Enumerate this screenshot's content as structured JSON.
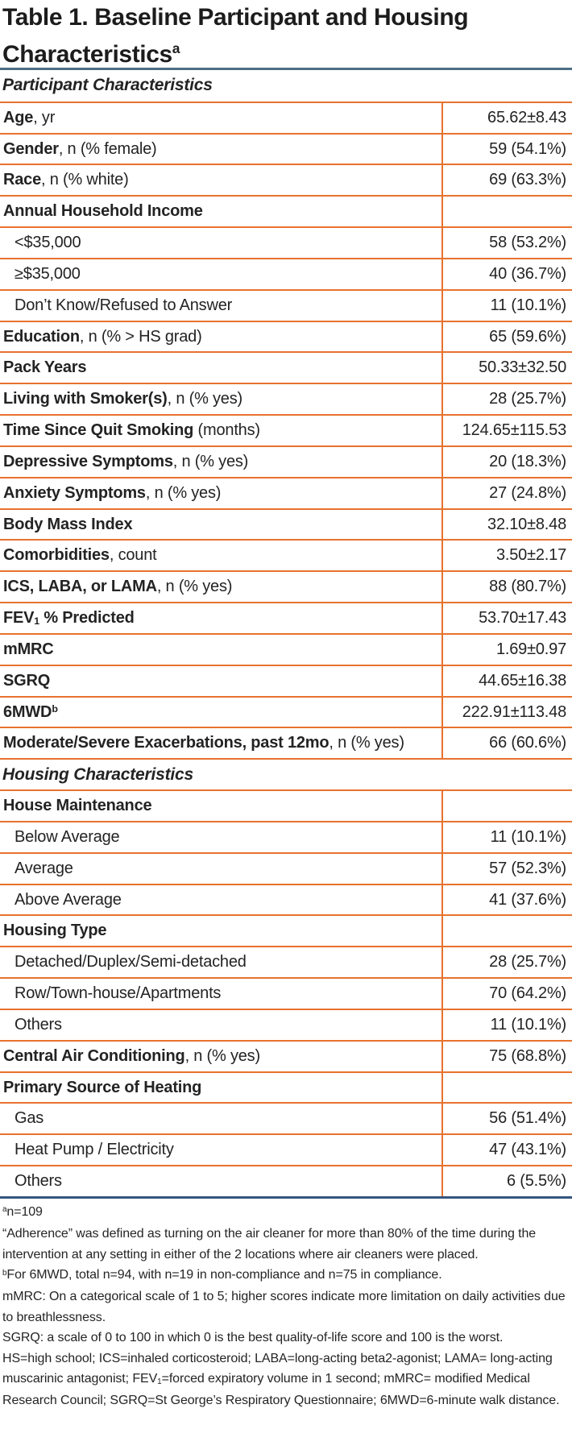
{
  "title": {
    "line1": "Table 1. Baseline Participant and Housing",
    "line2": "Characteristics",
    "superscript": "a"
  },
  "colors": {
    "accent_orange": "#E8722E",
    "rule_top": "#4D6F85",
    "rule_bottom": "#34567E"
  },
  "table": {
    "rows": [
      {
        "type": "section",
        "segments": [
          {
            "t": "Participant Characteristics",
            "b": true
          }
        ]
      },
      {
        "type": "row",
        "segments": [
          {
            "t": "Age",
            "b": true
          },
          {
            "t": ", yr"
          }
        ],
        "value": "65.62±8.43"
      },
      {
        "type": "row",
        "segments": [
          {
            "t": "Gender",
            "b": true
          },
          {
            "t": ", n (% female)"
          }
        ],
        "value": "59 (54.1%)"
      },
      {
        "type": "row",
        "segments": [
          {
            "t": "Race",
            "b": true
          },
          {
            "t": ", n (% white)"
          }
        ],
        "value": "69 (63.3%)"
      },
      {
        "type": "row",
        "segments": [
          {
            "t": "Annual Household Income",
            "b": true
          }
        ],
        "value": ""
      },
      {
        "type": "row",
        "indent": true,
        "segments": [
          {
            "t": "<$35,000"
          }
        ],
        "value": "58 (53.2%)"
      },
      {
        "type": "row",
        "indent": true,
        "segments": [
          {
            "t": "≥$35,000"
          }
        ],
        "value": "40 (36.7%)"
      },
      {
        "type": "row",
        "indent": true,
        "segments": [
          {
            "t": "Don’t Know/Refused to Answer"
          }
        ],
        "value": "11 (10.1%)"
      },
      {
        "type": "row",
        "segments": [
          {
            "t": "Education",
            "b": true
          },
          {
            "t": ", n (% > HS grad)"
          }
        ],
        "value": "65 (59.6%)"
      },
      {
        "type": "row",
        "segments": [
          {
            "t": "Pack Years",
            "b": true
          }
        ],
        "value": "50.33±32.50"
      },
      {
        "type": "row",
        "segments": [
          {
            "t": "Living with Smoker(s)",
            "b": true
          },
          {
            "t": ", n (% yes)"
          }
        ],
        "value": "28 (25.7%)"
      },
      {
        "type": "row",
        "segments": [
          {
            "t": "Time Since Quit Smoking",
            "b": true
          },
          {
            "t": " (months)"
          }
        ],
        "value": "124.65±115.53"
      },
      {
        "type": "row",
        "segments": [
          {
            "t": "Depressive Symptoms",
            "b": true
          },
          {
            "t": ", n (% yes)"
          }
        ],
        "value": "20 (18.3%)"
      },
      {
        "type": "row",
        "segments": [
          {
            "t": "Anxiety Symptoms",
            "b": true
          },
          {
            "t": ", n (% yes)"
          }
        ],
        "value": "27 (24.8%)"
      },
      {
        "type": "row",
        "segments": [
          {
            "t": "Body Mass Index",
            "b": true
          }
        ],
        "value": "32.10±8.48"
      },
      {
        "type": "row",
        "segments": [
          {
            "t": "Comorbidities",
            "b": true
          },
          {
            "t": ", count"
          }
        ],
        "value": "3.50±2.17"
      },
      {
        "type": "row",
        "segments": [
          {
            "t": "ICS, LABA, or LAMA",
            "b": true
          },
          {
            "t": ", n (% yes)"
          }
        ],
        "value": "88 (80.7%)"
      },
      {
        "type": "row",
        "segments": [
          {
            "t": "FEV",
            "b": true
          },
          {
            "t": "1",
            "b": true,
            "sub": true
          },
          {
            "t": " % Predicted",
            "b": true
          }
        ],
        "value": "53.70±17.43"
      },
      {
        "type": "row",
        "segments": [
          {
            "t": "mMRC",
            "b": true
          }
        ],
        "value": "1.69±0.97"
      },
      {
        "type": "row",
        "segments": [
          {
            "t": "SGRQ",
            "b": true
          }
        ],
        "value": "44.65±16.38"
      },
      {
        "type": "row",
        "segments": [
          {
            "t": "6MWD",
            "b": true
          },
          {
            "t": "b",
            "b": true,
            "sup": true
          }
        ],
        "value": "222.91±113.48"
      },
      {
        "type": "row",
        "segments": [
          {
            "t": "Moderate/Severe Exacerbations, past 12mo",
            "b": true
          },
          {
            "t": ", n (% yes)"
          }
        ],
        "value": "66 (60.6%)"
      },
      {
        "type": "section",
        "segments": [
          {
            "t": "Housing Characteristics",
            "b": true
          }
        ]
      },
      {
        "type": "row",
        "segments": [
          {
            "t": "House Maintenance",
            "b": true
          }
        ],
        "value": ""
      },
      {
        "type": "row",
        "indent": true,
        "segments": [
          {
            "t": "Below Average"
          }
        ],
        "value": "11 (10.1%)"
      },
      {
        "type": "row",
        "indent": true,
        "segments": [
          {
            "t": "Average"
          }
        ],
        "value": "57 (52.3%)"
      },
      {
        "type": "row",
        "indent": true,
        "segments": [
          {
            "t": "Above Average"
          }
        ],
        "value": "41 (37.6%)"
      },
      {
        "type": "row",
        "segments": [
          {
            "t": "Housing Type",
            "b": true
          }
        ],
        "value": ""
      },
      {
        "type": "row",
        "indent": true,
        "segments": [
          {
            "t": "Detached/Duplex/Semi-detached"
          }
        ],
        "value": "28 (25.7%)"
      },
      {
        "type": "row",
        "indent": true,
        "segments": [
          {
            "t": "Row/Town-house/Apartments"
          }
        ],
        "value": "70 (64.2%)"
      },
      {
        "type": "row",
        "indent": true,
        "segments": [
          {
            "t": "Others"
          }
        ],
        "value": "11 (10.1%)"
      },
      {
        "type": "row",
        "segments": [
          {
            "t": "Central Air Conditioning",
            "b": true
          },
          {
            "t": ", n (% yes)"
          }
        ],
        "value": "75 (68.8%)"
      },
      {
        "type": "row",
        "segments": [
          {
            "t": "Primary Source of Heating",
            "b": true
          }
        ],
        "value": ""
      },
      {
        "type": "row",
        "indent": true,
        "segments": [
          {
            "t": "Gas"
          }
        ],
        "value": "56 (51.4%)"
      },
      {
        "type": "row",
        "indent": true,
        "segments": [
          {
            "t": "Heat Pump / Electricity"
          }
        ],
        "value": "47 (43.1%)"
      },
      {
        "type": "row",
        "indent": true,
        "segments": [
          {
            "t": "Others"
          }
        ],
        "value": "6 (5.5%)"
      }
    ]
  },
  "footnotes": [
    [
      {
        "t": "a",
        "sup": true
      },
      {
        "t": "n=109"
      }
    ],
    [
      {
        "t": "“Adherence” was defined as turning on the air cleaner for more than 80% of the time during the intervention at any setting in either of the 2 locations where air cleaners were placed."
      }
    ],
    [
      {
        "t": "b",
        "sup": true
      },
      {
        "t": "For 6MWD, total n=94, with n=19 in non-compliance and n=75 in compliance."
      }
    ],
    [
      {
        "t": "mMRC: On a categorical scale of 1 to 5; higher scores indicate more limitation on daily activities due to breathlessness."
      }
    ],
    [
      {
        "t": "SGRQ: a scale of 0 to 100 in which 0 is the best quality-of-life score and 100 is the worst."
      }
    ],
    [
      {
        "t": "HS=high school; ICS=inhaled corticosteroid; LABA=long-acting beta2-agonist; LAMA= long-acting muscarinic antagonist; FEV"
      },
      {
        "t": "1",
        "sub": true
      },
      {
        "t": "=forced expiratory volume in 1 second; mMRC= modified Medical Research Council; SGRQ=St George’s Respiratory Questionnaire; 6MWD=6-minute walk distance."
      }
    ]
  ]
}
